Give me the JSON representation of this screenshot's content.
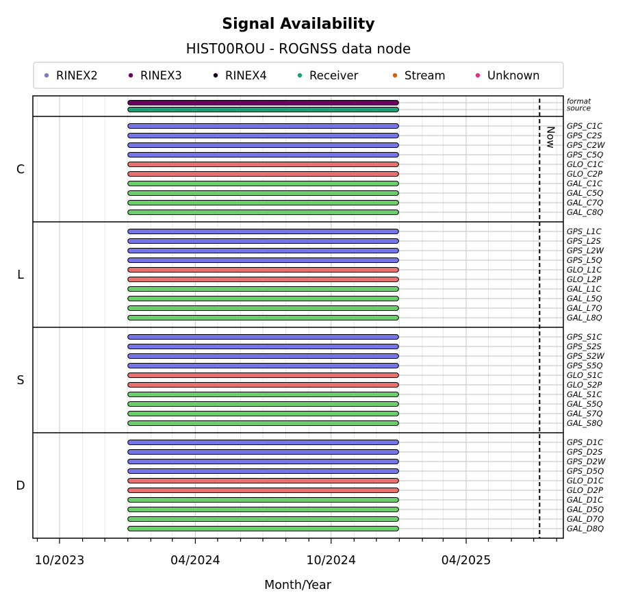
{
  "chart_data": {
    "type": "timeline",
    "title": "Signal Availability",
    "subtitle": "HIST00ROU - ROGNSS data node",
    "xlabel": "Month/Year",
    "x_axis": {
      "range": [
        "2023-08-26",
        "2025-08-10"
      ],
      "major_ticks": [
        {
          "date": "2023-10-01",
          "label": "10/2023"
        },
        {
          "date": "2024-04-01",
          "label": "04/2024"
        },
        {
          "date": "2024-10-01",
          "label": "10/2024"
        },
        {
          "date": "2025-04-01",
          "label": "04/2025"
        }
      ],
      "grid": true
    },
    "now": {
      "date": "2025-07-09",
      "label": "Now"
    },
    "legend": {
      "placement": "top",
      "items": [
        {
          "label": "RINEX2",
          "color": "#7b7bc8"
        },
        {
          "label": "RINEX3",
          "color": "#6a0060"
        },
        {
          "label": "RINEX4",
          "color": "#14001a"
        },
        {
          "label": "Receiver",
          "color": "#1b9e77"
        },
        {
          "label": "Stream",
          "color": "#d95f02"
        },
        {
          "label": "Unknown",
          "color": "#e7298a"
        }
      ]
    },
    "colors": {
      "GPS": "#7575e8",
      "GLO": "#e87070",
      "GAL": "#6ccd6c",
      "format": "#6a0060",
      "source": "#1b9e77"
    },
    "period": {
      "start": "2024-01-01",
      "end": "2024-12-31"
    },
    "top_rows": [
      {
        "label": "format",
        "color_key": "format"
      },
      {
        "label": "source",
        "color_key": "source"
      }
    ],
    "groups": [
      {
        "name": "C",
        "rows": [
          "GPS_C1C",
          "GPS_C2S",
          "GPS_C2W",
          "GPS_C5Q",
          "GLO_C1C",
          "GLO_C2P",
          "GAL_C1C",
          "GAL_C5Q",
          "GAL_C7Q",
          "GAL_C8Q"
        ]
      },
      {
        "name": "L",
        "rows": [
          "GPS_L1C",
          "GPS_L2S",
          "GPS_L2W",
          "GPS_L5Q",
          "GLO_L1C",
          "GLO_L2P",
          "GAL_L1C",
          "GAL_L5Q",
          "GAL_L7Q",
          "GAL_L8Q"
        ]
      },
      {
        "name": "S",
        "rows": [
          "GPS_S1C",
          "GPS_S2S",
          "GPS_S2W",
          "GPS_S5Q",
          "GLO_S1C",
          "GLO_S2P",
          "GAL_S1C",
          "GAL_S5Q",
          "GAL_S7Q",
          "GAL_S8Q"
        ]
      },
      {
        "name": "D",
        "rows": [
          "GPS_D1C",
          "GPS_D2S",
          "GPS_D2W",
          "GPS_D5Q",
          "GLO_D1C",
          "GLO_D2P",
          "GAL_D1C",
          "GAL_D5Q",
          "GAL_D7Q",
          "GAL_D8Q"
        ]
      }
    ]
  }
}
